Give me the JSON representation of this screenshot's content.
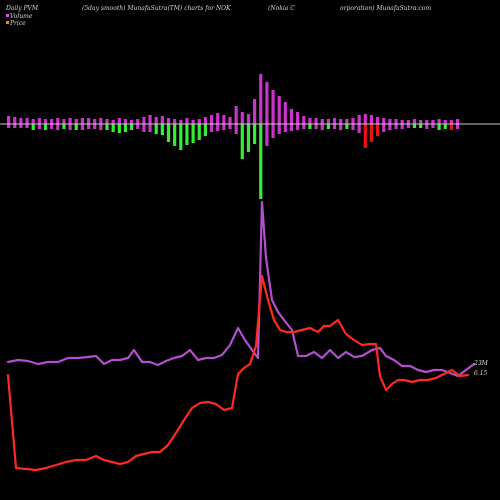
{
  "header": {
    "left": "Daily PVM",
    "center": "(5day smooth) MunafaSutra(TM) charts for NOK",
    "right_a": "(Nokia  C",
    "right_b": "orporation) MunafaSutra.com"
  },
  "legend": {
    "volume_label": "Volume",
    "price_label": "Price",
    "volume_color": "#d946d9",
    "price_color": "#e08a2c"
  },
  "end_labels": {
    "volume": "23M",
    "price": "6.15"
  },
  "colors": {
    "background": "#000000",
    "baseline": "#c8c8c8",
    "bar_magenta": "#cc33cc",
    "bar_green": "#33ee33",
    "bar_red": "#ee1111",
    "volume_line": "#b34fd1",
    "price_line": "#ff2a1f"
  },
  "chart_data": {
    "type": "line",
    "bars": [
      {
        "up": 8,
        "down": -4,
        "color": "magenta"
      },
      {
        "up": 7,
        "down": -4,
        "color": "magenta"
      },
      {
        "up": 6,
        "down": -4,
        "color": "magenta"
      },
      {
        "up": 6,
        "down": -4,
        "color": "magenta"
      },
      {
        "up": 5,
        "down": -6,
        "color": "green"
      },
      {
        "up": 6,
        "down": -5,
        "color": "magenta"
      },
      {
        "up": 5,
        "down": -6,
        "color": "green"
      },
      {
        "up": 5,
        "down": -5,
        "color": "magenta"
      },
      {
        "up": 6,
        "down": -6,
        "color": "magenta"
      },
      {
        "up": 5,
        "down": -5,
        "color": "green"
      },
      {
        "up": 6,
        "down": -6,
        "color": "magenta"
      },
      {
        "up": 5,
        "down": -6,
        "color": "green"
      },
      {
        "up": 6,
        "down": -6,
        "color": "magenta"
      },
      {
        "up": 6,
        "down": -5,
        "color": "magenta"
      },
      {
        "up": 5,
        "down": -5,
        "color": "magenta"
      },
      {
        "up": 6,
        "down": -6,
        "color": "magenta"
      },
      {
        "up": 5,
        "down": -6,
        "color": "green"
      },
      {
        "up": 4,
        "down": -8,
        "color": "green"
      },
      {
        "up": 6,
        "down": -9,
        "color": "green"
      },
      {
        "up": 5,
        "down": -8,
        "color": "green"
      },
      {
        "up": 4,
        "down": -6,
        "color": "green"
      },
      {
        "up": 5,
        "down": -5,
        "color": "magenta"
      },
      {
        "up": 7,
        "down": -8,
        "color": "magenta"
      },
      {
        "up": 9,
        "down": -8,
        "color": "magenta"
      },
      {
        "up": 7,
        "down": -10,
        "color": "green"
      },
      {
        "up": 8,
        "down": -11,
        "color": "green"
      },
      {
        "up": 6,
        "down": -18,
        "color": "green"
      },
      {
        "up": 5,
        "down": -22,
        "color": "green"
      },
      {
        "up": 4,
        "down": -26,
        "color": "green"
      },
      {
        "up": 6,
        "down": -21,
        "color": "green"
      },
      {
        "up": 4,
        "down": -19,
        "color": "green"
      },
      {
        "up": 5,
        "down": -16,
        "color": "green"
      },
      {
        "up": 7,
        "down": -12,
        "color": "green"
      },
      {
        "up": 9,
        "down": -8,
        "color": "magenta"
      },
      {
        "up": 11,
        "down": -7,
        "color": "magenta"
      },
      {
        "up": 9,
        "down": -6,
        "color": "magenta"
      },
      {
        "up": 7,
        "down": -5,
        "color": "magenta"
      },
      {
        "up": 18,
        "down": -10,
        "color": "magenta"
      },
      {
        "up": 12,
        "down": -35,
        "color": "green"
      },
      {
        "up": 10,
        "down": -28,
        "color": "green"
      },
      {
        "up": 25,
        "down": -20,
        "color": "green"
      },
      {
        "up": 50,
        "down": -75,
        "color": "green"
      },
      {
        "up": 42,
        "down": -22,
        "color": "magenta"
      },
      {
        "up": 34,
        "down": -14,
        "color": "magenta"
      },
      {
        "up": 28,
        "down": -10,
        "color": "magenta"
      },
      {
        "up": 22,
        "down": -8,
        "color": "magenta"
      },
      {
        "up": 15,
        "down": -7,
        "color": "magenta"
      },
      {
        "up": 12,
        "down": -6,
        "color": "magenta"
      },
      {
        "up": 8,
        "down": -5,
        "color": "magenta"
      },
      {
        "up": 6,
        "down": -5,
        "color": "green"
      },
      {
        "up": 6,
        "down": -5,
        "color": "magenta"
      },
      {
        "up": 5,
        "down": -6,
        "color": "magenta"
      },
      {
        "up": 5,
        "down": -5,
        "color": "green"
      },
      {
        "up": 6,
        "down": -5,
        "color": "magenta"
      },
      {
        "up": 5,
        "down": -6,
        "color": "magenta"
      },
      {
        "up": 5,
        "down": -5,
        "color": "green"
      },
      {
        "up": 6,
        "down": -6,
        "color": "magenta"
      },
      {
        "up": 9,
        "down": -9,
        "color": "magenta"
      },
      {
        "up": 10,
        "down": -24,
        "color": "red"
      },
      {
        "up": 9,
        "down": -18,
        "color": "red"
      },
      {
        "up": 7,
        "down": -12,
        "color": "red"
      },
      {
        "up": 6,
        "down": -8,
        "color": "magenta"
      },
      {
        "up": 5,
        "down": -6,
        "color": "magenta"
      },
      {
        "up": 5,
        "down": -5,
        "color": "magenta"
      },
      {
        "up": 4,
        "down": -5,
        "color": "magenta"
      },
      {
        "up": 4,
        "down": -4,
        "color": "magenta"
      },
      {
        "up": 5,
        "down": -4,
        "color": "green"
      },
      {
        "up": 4,
        "down": -4,
        "color": "green"
      },
      {
        "up": 4,
        "down": -5,
        "color": "magenta"
      },
      {
        "up": 4,
        "down": -4,
        "color": "magenta"
      },
      {
        "up": 5,
        "down": -6,
        "color": "green"
      },
      {
        "up": 4,
        "down": -5,
        "color": "green"
      },
      {
        "up": 4,
        "down": -6,
        "color": "red"
      },
      {
        "up": 5,
        "down": -5,
        "color": "magenta"
      }
    ],
    "volume_line": [
      [
        8,
        362
      ],
      [
        18,
        360
      ],
      [
        28,
        361
      ],
      [
        38,
        364
      ],
      [
        48,
        362
      ],
      [
        58,
        362
      ],
      [
        68,
        358
      ],
      [
        78,
        358
      ],
      [
        88,
        357
      ],
      [
        96,
        356
      ],
      [
        104,
        364
      ],
      [
        112,
        360
      ],
      [
        120,
        360
      ],
      [
        128,
        358
      ],
      [
        134,
        350
      ],
      [
        142,
        362
      ],
      [
        150,
        362
      ],
      [
        158,
        365
      ],
      [
        166,
        361
      ],
      [
        174,
        358
      ],
      [
        182,
        356
      ],
      [
        190,
        350
      ],
      [
        198,
        360
      ],
      [
        206,
        358
      ],
      [
        214,
        358
      ],
      [
        222,
        355
      ],
      [
        230,
        345
      ],
      [
        238,
        328
      ],
      [
        245,
        340
      ],
      [
        252,
        350
      ],
      [
        258,
        358
      ],
      [
        262,
        202
      ],
      [
        266,
        258
      ],
      [
        272,
        300
      ],
      [
        278,
        312
      ],
      [
        284,
        320
      ],
      [
        292,
        330
      ],
      [
        298,
        356
      ],
      [
        306,
        356
      ],
      [
        314,
        352
      ],
      [
        322,
        358
      ],
      [
        330,
        350
      ],
      [
        338,
        358
      ],
      [
        346,
        352
      ],
      [
        354,
        357
      ],
      [
        362,
        356
      ],
      [
        372,
        350
      ],
      [
        380,
        348
      ],
      [
        386,
        356
      ],
      [
        394,
        360
      ],
      [
        402,
        366
      ],
      [
        410,
        366
      ],
      [
        418,
        370
      ],
      [
        426,
        372
      ],
      [
        434,
        370
      ],
      [
        442,
        370
      ],
      [
        450,
        373
      ],
      [
        458,
        376
      ],
      [
        466,
        370
      ],
      [
        474,
        364
      ]
    ],
    "price_line": [
      [
        8,
        375
      ],
      [
        16,
        468
      ],
      [
        26,
        469
      ],
      [
        36,
        470
      ],
      [
        46,
        468
      ],
      [
        56,
        465
      ],
      [
        66,
        462
      ],
      [
        76,
        460
      ],
      [
        86,
        460
      ],
      [
        96,
        456
      ],
      [
        104,
        460
      ],
      [
        112,
        462
      ],
      [
        120,
        464
      ],
      [
        128,
        462
      ],
      [
        136,
        456
      ],
      [
        144,
        454
      ],
      [
        152,
        452
      ],
      [
        160,
        452
      ],
      [
        168,
        445
      ],
      [
        176,
        433
      ],
      [
        184,
        420
      ],
      [
        192,
        408
      ],
      [
        200,
        403
      ],
      [
        208,
        402
      ],
      [
        216,
        404
      ],
      [
        224,
        410
      ],
      [
        232,
        408
      ],
      [
        238,
        374
      ],
      [
        244,
        368
      ],
      [
        250,
        364
      ],
      [
        256,
        346
      ],
      [
        262,
        276
      ],
      [
        268,
        300
      ],
      [
        274,
        320
      ],
      [
        280,
        330
      ],
      [
        286,
        332
      ],
      [
        294,
        332
      ],
      [
        302,
        330
      ],
      [
        310,
        328
      ],
      [
        318,
        332
      ],
      [
        324,
        326
      ],
      [
        330,
        326
      ],
      [
        338,
        320
      ],
      [
        346,
        334
      ],
      [
        354,
        340
      ],
      [
        362,
        345
      ],
      [
        370,
        344
      ],
      [
        376,
        344
      ],
      [
        380,
        376
      ],
      [
        386,
        390
      ],
      [
        392,
        384
      ],
      [
        398,
        380
      ],
      [
        404,
        380
      ],
      [
        412,
        382
      ],
      [
        420,
        380
      ],
      [
        428,
        380
      ],
      [
        436,
        378
      ],
      [
        444,
        374
      ],
      [
        452,
        370
      ],
      [
        460,
        376
      ],
      [
        468,
        375
      ]
    ]
  }
}
